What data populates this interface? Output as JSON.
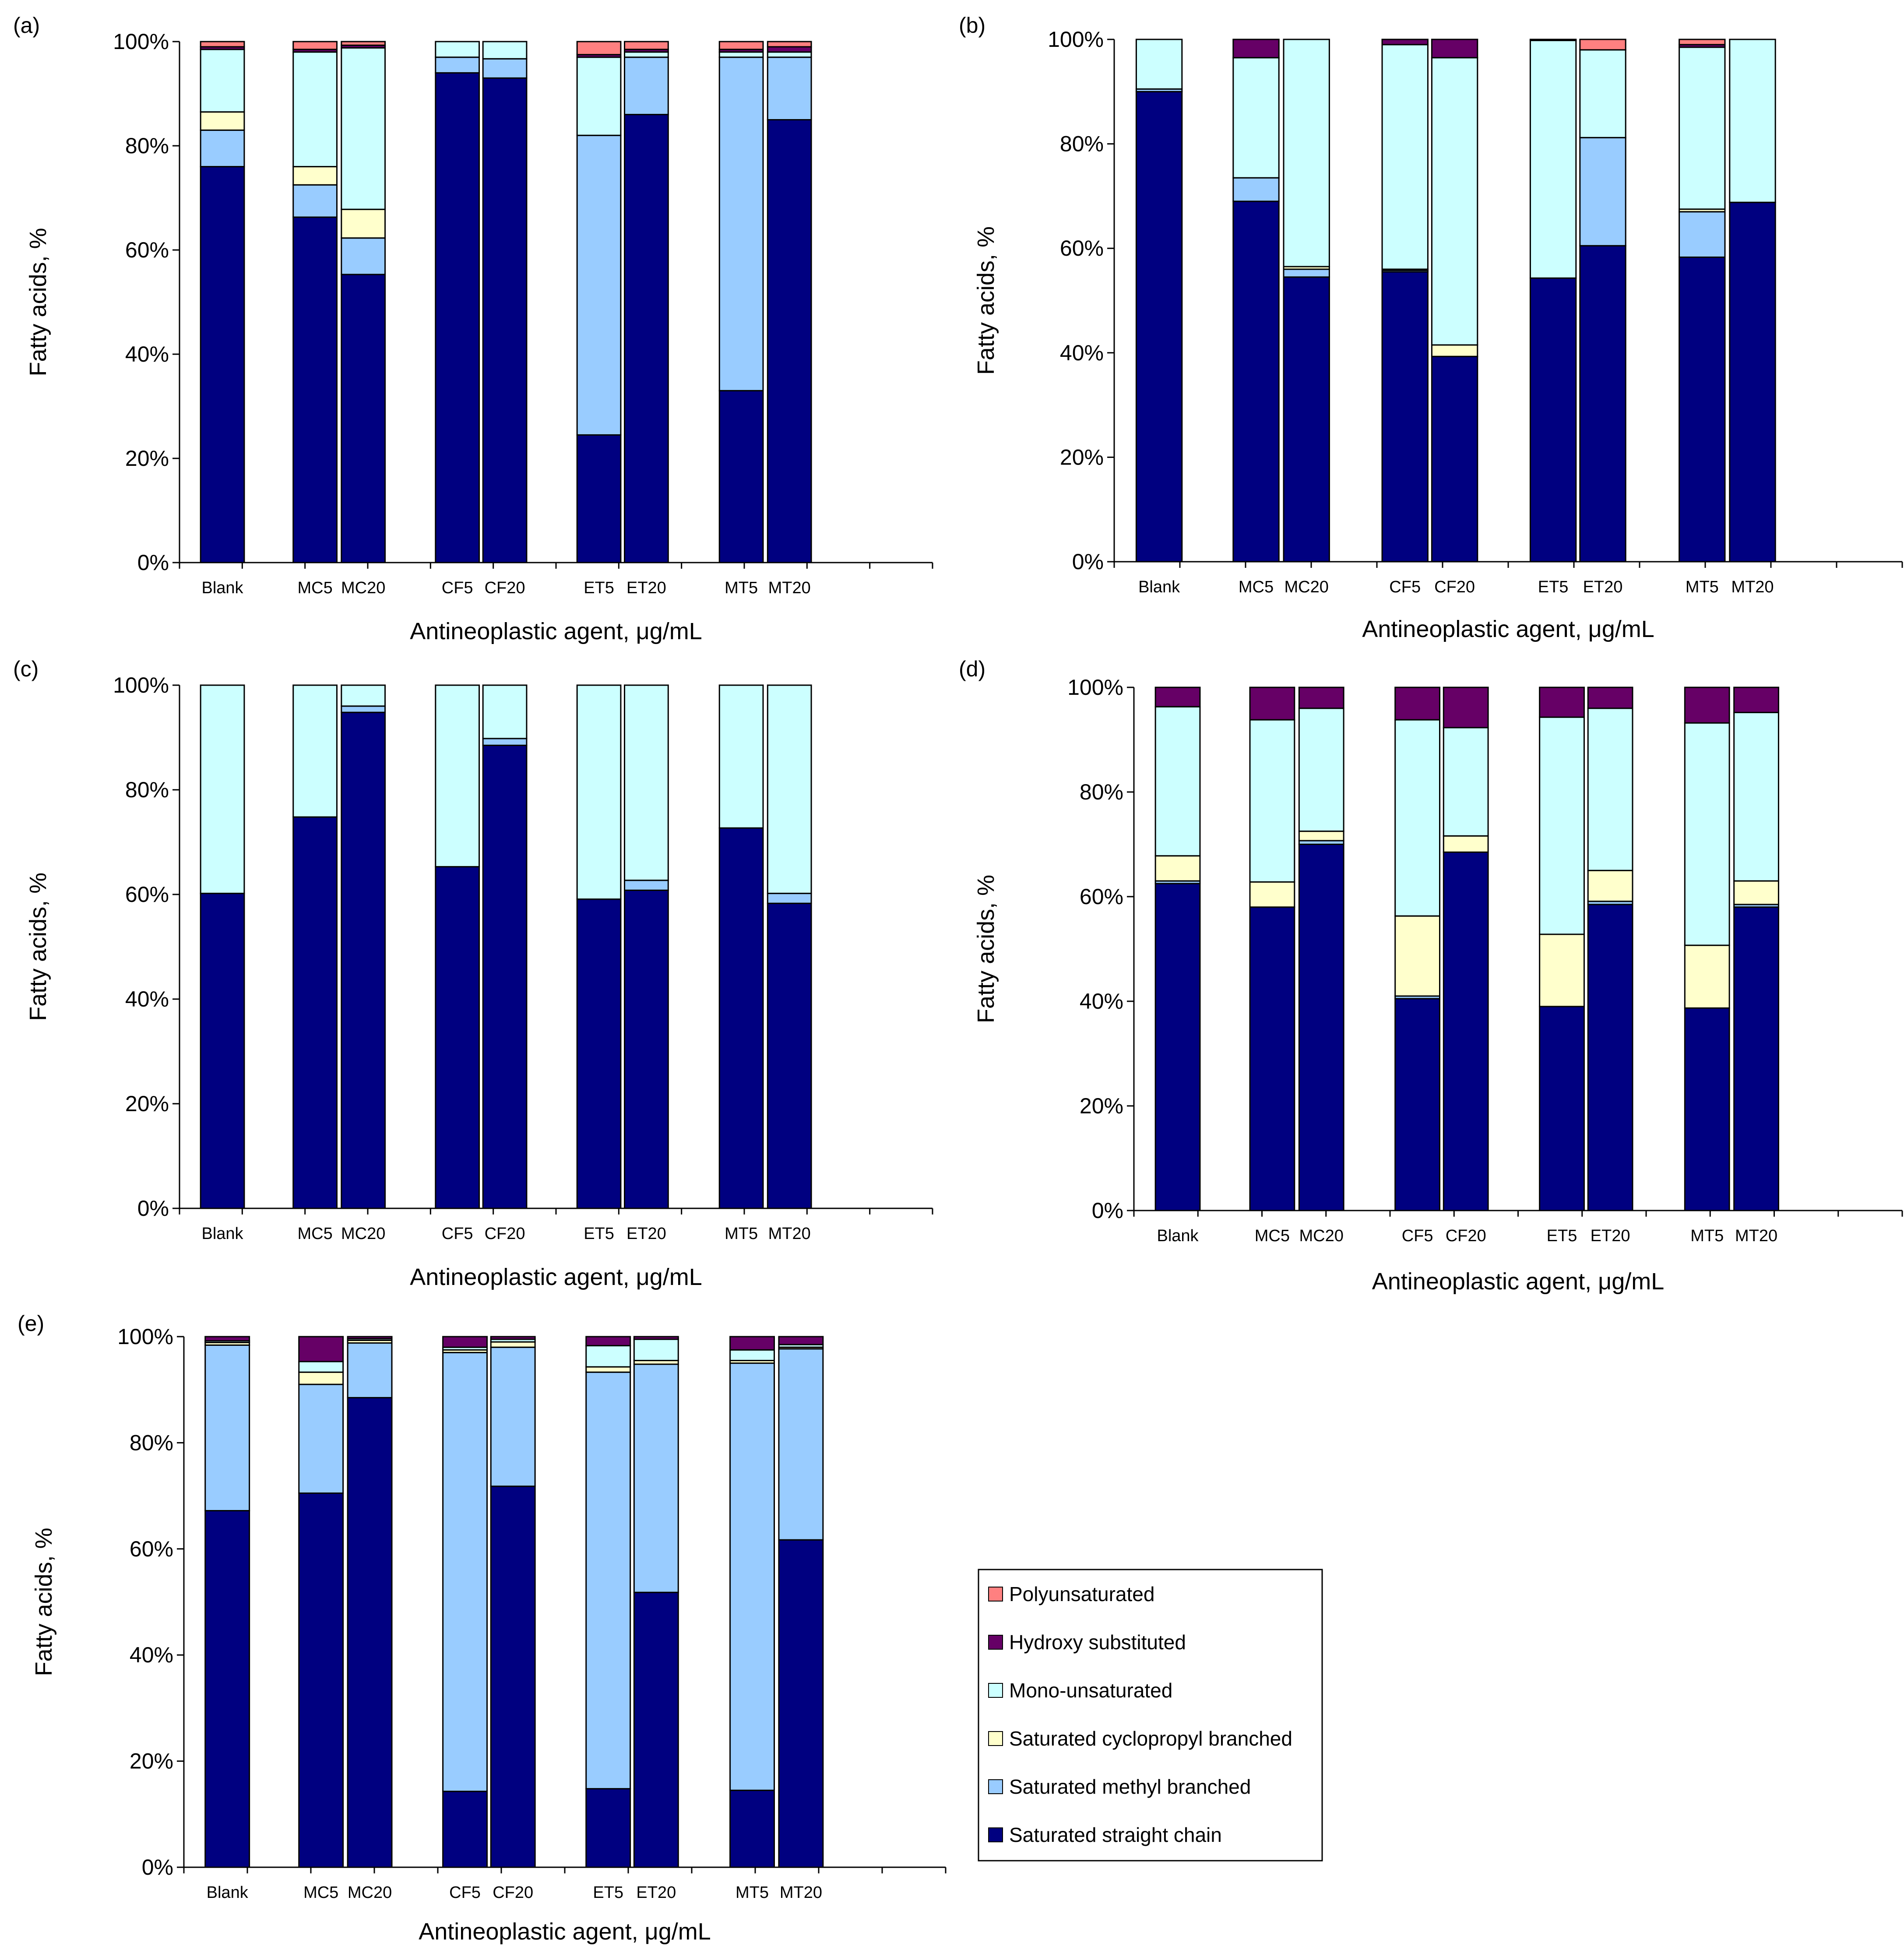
{
  "colors": {
    "Polyunsaturated": "#ff8080",
    "Hydroxy substituted": "#660066",
    "Mono-unsaturated": "#ccffff",
    "Saturated cyclopropyl branched": "#ffffcc",
    "Saturated methyl branched": "#99ccff",
    "Saturated straight chain": "#000080"
  },
  "legend": {
    "items": [
      "Polyunsaturated",
      "Hydroxy substituted",
      "Mono-unsaturated",
      "Saturated cyclopropyl branched",
      "Saturated methyl branched",
      "Saturated straight chain"
    ]
  },
  "chart_data": [
    {
      "panel": "(a)",
      "type": "bar",
      "stacked": true,
      "xlabel": "Antineoplastic agent, μg/mL",
      "ylabel": "Fatty acids, %",
      "ylim": [
        0,
        100
      ],
      "yticks": [
        "0%",
        "20%",
        "40%",
        "60%",
        "80%",
        "100%"
      ],
      "categories": [
        "Blank",
        "MC5",
        "MC20",
        "CF5",
        "CF20",
        "ET5",
        "ET20",
        "MT5",
        "MT20"
      ],
      "series": [
        {
          "name": "Saturated straight chain",
          "values": [
            76,
            66.3,
            55.3,
            94,
            93,
            24.5,
            86,
            33,
            85
          ]
        },
        {
          "name": "Saturated methyl branched",
          "values": [
            7,
            6.2,
            7,
            3,
            3.7,
            57.5,
            11,
            64,
            12
          ]
        },
        {
          "name": "Saturated cyclopropyl branched",
          "values": [
            3.5,
            3.5,
            5.5,
            0,
            0,
            0,
            0,
            0,
            0
          ]
        },
        {
          "name": "Mono-unsaturated",
          "values": [
            12,
            22,
            31,
            3,
            3.3,
            15,
            1,
            1,
            1
          ]
        },
        {
          "name": "Hydroxy substituted",
          "values": [
            0.5,
            0.5,
            0.5,
            0,
            0,
            0.5,
            0.5,
            0.5,
            1
          ]
        },
        {
          "name": "Polyunsaturated",
          "values": [
            1,
            1.5,
            0.7,
            0,
            0,
            2.5,
            1.5,
            1.5,
            1
          ]
        }
      ]
    },
    {
      "panel": "(b)",
      "type": "bar",
      "stacked": true,
      "xlabel": "Antineoplastic agent, μg/mL",
      "ylabel": "Fatty acids, %",
      "ylim": [
        0,
        100
      ],
      "yticks": [
        "0%",
        "20%",
        "40%",
        "60%",
        "80%",
        "100%"
      ],
      "categories": [
        "Blank",
        "MC5",
        "MC20",
        "CF5",
        "CF20",
        "ET5",
        "ET20",
        "MT5",
        "MT20"
      ],
      "series": [
        {
          "name": "Saturated straight chain",
          "values": [
            90,
            69,
            54.5,
            55.5,
            39.3,
            54.3,
            60.5,
            58.3,
            68.8
          ]
        },
        {
          "name": "Saturated methyl branched",
          "values": [
            0.5,
            4.5,
            1.5,
            0.3,
            0,
            0,
            20.7,
            8.7,
            0
          ]
        },
        {
          "name": "Saturated cyclopropyl branched",
          "values": [
            0,
            0,
            0.5,
            0.2,
            2.2,
            0,
            0,
            0.5,
            0
          ]
        },
        {
          "name": "Mono-unsaturated",
          "values": [
            9.5,
            23,
            43.5,
            43,
            55,
            45.5,
            16.8,
            31,
            31.2
          ]
        },
        {
          "name": "Hydroxy substituted",
          "values": [
            0,
            3.5,
            0,
            1,
            3.5,
            0.2,
            0,
            0.5,
            0
          ]
        },
        {
          "name": "Polyunsaturated",
          "values": [
            0,
            0,
            0,
            0,
            0,
            0,
            2,
            1,
            0
          ]
        }
      ]
    },
    {
      "panel": "(c)",
      "type": "bar",
      "stacked": true,
      "xlabel": "Antineoplastic agent, μg/mL",
      "ylabel": "Fatty acids, %",
      "ylim": [
        0,
        100
      ],
      "yticks": [
        "0%",
        "20%",
        "40%",
        "60%",
        "80%",
        "100%"
      ],
      "categories": [
        "Blank",
        "MC5",
        "MC20",
        "CF5",
        "CF20",
        "ET5",
        "ET20",
        "MT5",
        "MT20"
      ],
      "series": [
        {
          "name": "Saturated straight chain",
          "values": [
            60.2,
            74.8,
            94.8,
            65.3,
            88.5,
            59.1,
            60.8,
            72.7,
            58.3
          ]
        },
        {
          "name": "Saturated methyl branched",
          "values": [
            0,
            0,
            1.2,
            0,
            1.3,
            0,
            1.9,
            0,
            1.9
          ]
        },
        {
          "name": "Saturated cyclopropyl branched",
          "values": [
            0,
            0,
            0,
            0,
            0,
            0,
            0,
            0,
            0
          ]
        },
        {
          "name": "Mono-unsaturated",
          "values": [
            39.8,
            25.2,
            4,
            34.7,
            10.2,
            40.9,
            37.3,
            27.3,
            39.8
          ]
        },
        {
          "name": "Hydroxy substituted",
          "values": [
            0,
            0,
            0,
            0,
            0,
            0,
            0,
            0,
            0
          ]
        },
        {
          "name": "Polyunsaturated",
          "values": [
            0,
            0,
            0,
            0,
            0,
            0,
            0,
            0,
            0
          ]
        }
      ]
    },
    {
      "panel": "(d)",
      "type": "bar",
      "stacked": true,
      "xlabel": "Antineoplastic agent, μg/mL",
      "ylabel": "Fatty acids, %",
      "ylim": [
        0,
        100
      ],
      "yticks": [
        "0%",
        "20%",
        "40%",
        "60%",
        "80%",
        "100%"
      ],
      "categories": [
        "Blank",
        "MC5",
        "MC20",
        "CF5",
        "CF20",
        "ET5",
        "ET20",
        "MT5",
        "MT20"
      ],
      "series": [
        {
          "name": "Saturated straight chain",
          "values": [
            62.5,
            58,
            70,
            40.5,
            68.5,
            39,
            58.5,
            38.7,
            58
          ]
        },
        {
          "name": "Saturated methyl branched",
          "values": [
            0.5,
            0,
            0.7,
            0.5,
            0,
            0,
            0.6,
            0,
            0.5
          ]
        },
        {
          "name": "Saturated cyclopropyl branched",
          "values": [
            4.8,
            4.8,
            1.8,
            15.3,
            3.1,
            13.8,
            5.9,
            12,
            4.5
          ]
        },
        {
          "name": "Mono-unsaturated",
          "values": [
            28.5,
            31,
            23.5,
            37.5,
            20.7,
            41.5,
            31,
            42.5,
            32.2
          ]
        },
        {
          "name": "Hydroxy substituted",
          "values": [
            3.7,
            6.2,
            4,
            6.2,
            7.7,
            5.7,
            4,
            6.8,
            4.8
          ]
        },
        {
          "name": "Polyunsaturated",
          "values": [
            0,
            0,
            0,
            0,
            0,
            0,
            0,
            0,
            0
          ]
        }
      ]
    },
    {
      "panel": "(e)",
      "type": "bar",
      "stacked": true,
      "xlabel": "Antineoplastic agent, μg/mL",
      "ylabel": "Fatty acids, %",
      "ylim": [
        0,
        100
      ],
      "yticks": [
        "0%",
        "20%",
        "40%",
        "60%",
        "80%",
        "100%"
      ],
      "categories": [
        "Blank",
        "MC5",
        "MC20",
        "CF5",
        "CF20",
        "ET5",
        "ET20",
        "MT5",
        "MT20"
      ],
      "series": [
        {
          "name": "Saturated straight chain",
          "values": [
            67.2,
            70.5,
            88.5,
            14.3,
            71.8,
            14.8,
            51.8,
            14.5,
            61.7
          ]
        },
        {
          "name": "Saturated methyl branched",
          "values": [
            31.2,
            20.5,
            10.3,
            82.7,
            26.2,
            78.5,
            43,
            80.5,
            36
          ]
        },
        {
          "name": "Saturated cyclopropyl branched",
          "values": [
            0.5,
            2.3,
            0.5,
            0.5,
            1,
            1,
            0.7,
            0.5,
            0.3
          ]
        },
        {
          "name": "Mono-unsaturated",
          "values": [
            0.3,
            2,
            0.3,
            0.5,
            0.5,
            4,
            4,
            2,
            0.5
          ]
        },
        {
          "name": "Hydroxy substituted",
          "values": [
            0.8,
            4.7,
            0.4,
            2,
            0.5,
            1.7,
            0.5,
            2.5,
            1.5
          ]
        },
        {
          "name": "Polyunsaturated",
          "values": [
            0,
            0,
            0,
            0,
            0,
            0,
            0,
            0,
            0
          ]
        }
      ]
    }
  ]
}
